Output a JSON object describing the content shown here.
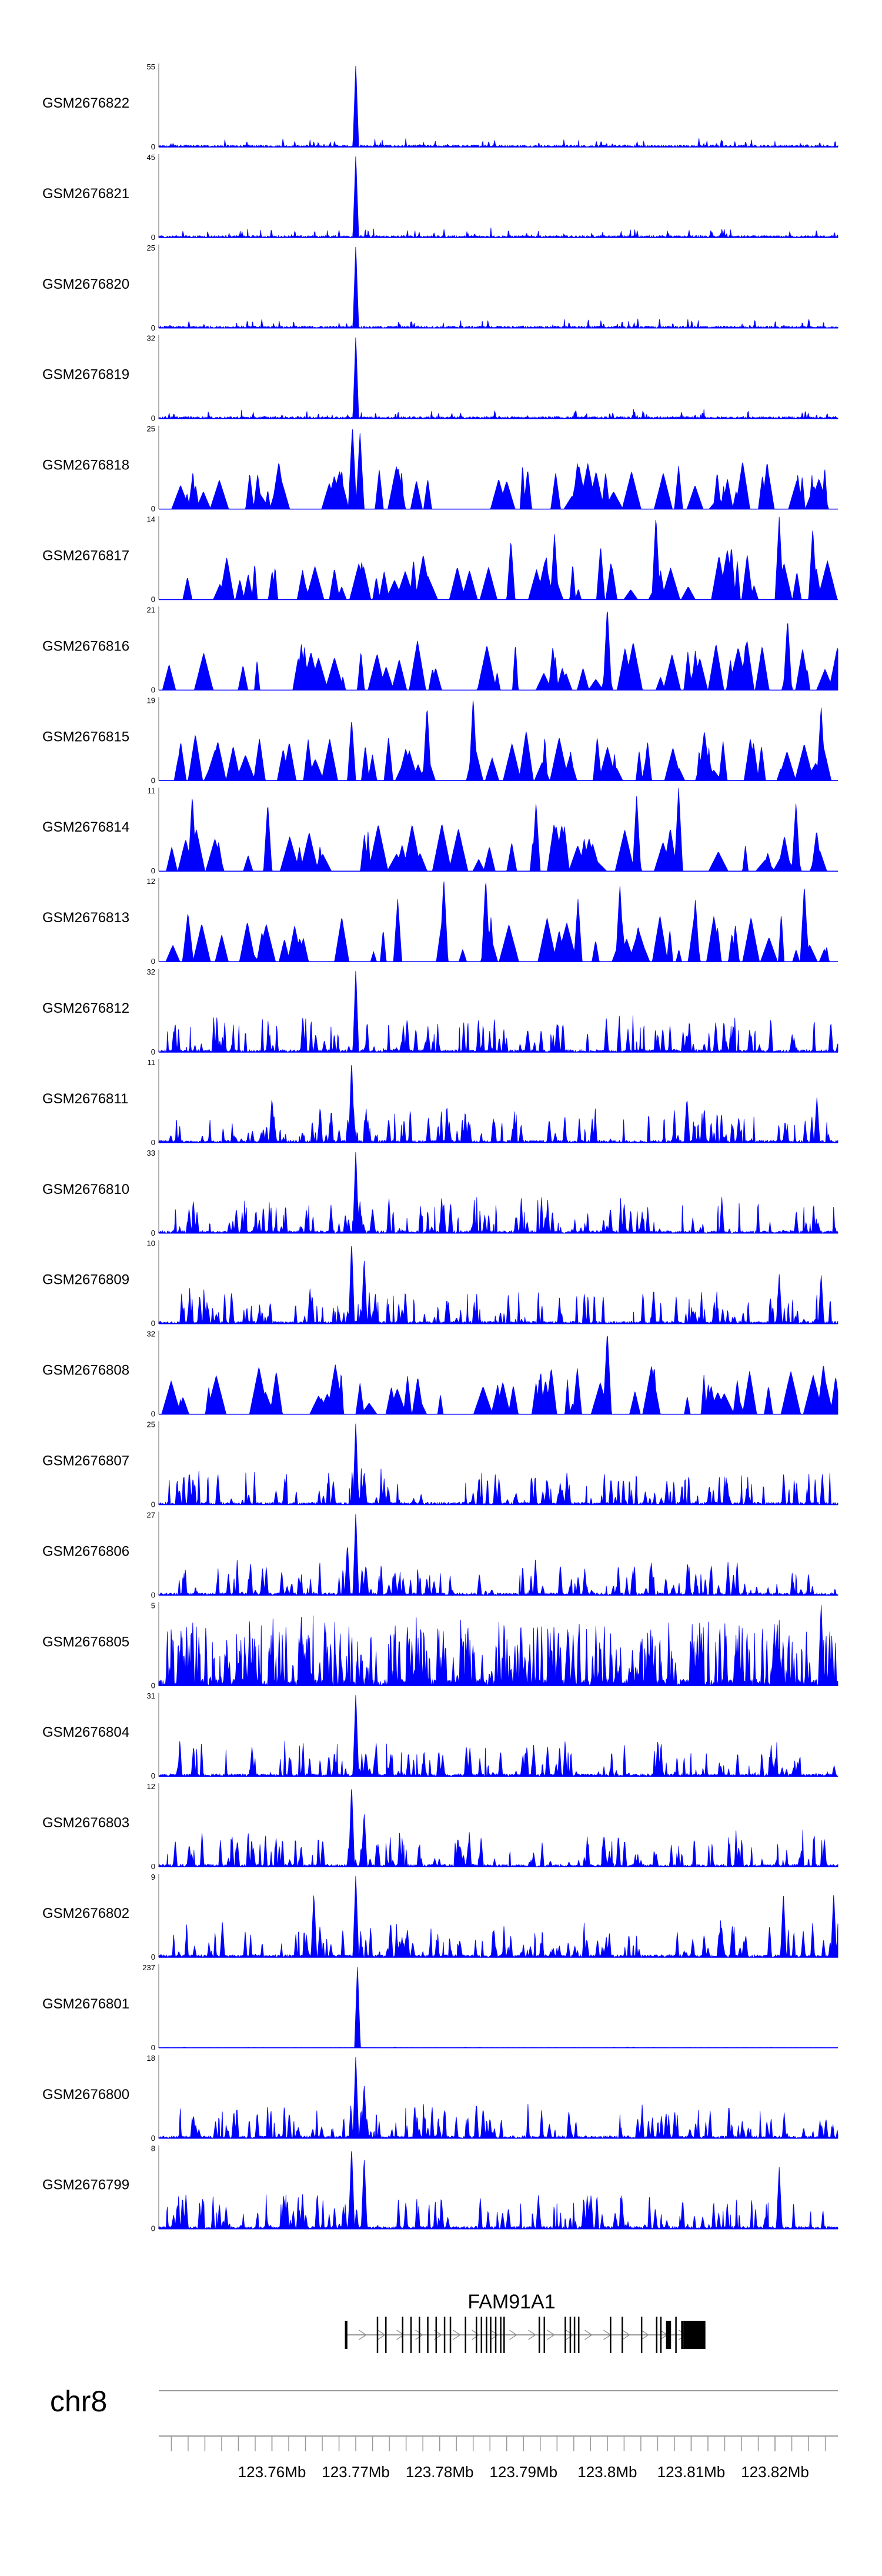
{
  "chart_data": {
    "type": "area",
    "title": "",
    "chromosome": "chr8",
    "xlim": [
      123.7465,
      123.8275
    ],
    "signal_color": "#0000ff",
    "tracks": [
      {
        "name": "GSM2676822",
        "ymax": "55",
        "ymin": "0",
        "style": "spiky",
        "peaks": [
          [
            123.77,
            55
          ]
        ]
      },
      {
        "name": "GSM2676821",
        "ymax": "45",
        "ymin": "0",
        "style": "spiky",
        "peaks": [
          [
            123.77,
            45
          ]
        ]
      },
      {
        "name": "GSM2676820",
        "ymax": "25",
        "ymin": "0",
        "style": "spiky",
        "peaks": [
          [
            123.77,
            25
          ]
        ]
      },
      {
        "name": "GSM2676819",
        "ymax": "32",
        "ymin": "0",
        "style": "spiky",
        "peaks": [
          [
            123.77,
            32
          ]
        ]
      },
      {
        "name": "GSM2676818",
        "ymax": "25",
        "ymin": "0",
        "style": "sparse",
        "peaks": [
          [
            123.7696,
            25
          ],
          [
            123.7705,
            23
          ],
          [
            123.7728,
            12
          ],
          [
            123.7905,
            12
          ],
          [
            123.7998,
            11
          ],
          [
            123.8085,
            13
          ],
          [
            123.8185,
            10
          ]
        ]
      },
      {
        "name": "GSM2676817",
        "ymax": "14",
        "ymin": "0",
        "style": "sparse",
        "peaks": [
          [
            123.7885,
            10
          ],
          [
            123.7937,
            11
          ],
          [
            123.7992,
            9
          ],
          [
            123.8058,
            14
          ],
          [
            123.8148,
            9
          ],
          [
            123.8205,
            14
          ],
          [
            123.8245,
            12
          ]
        ]
      },
      {
        "name": "GSM2676816",
        "ymax": "21",
        "ymin": "0",
        "style": "sparse",
        "peaks": [
          [
            123.7935,
            11
          ],
          [
            123.8,
            21
          ],
          [
            123.8105,
            10
          ],
          [
            123.8165,
            12
          ],
          [
            123.8215,
            18
          ]
        ]
      },
      {
        "name": "GSM2676815",
        "ymax": "19",
        "ymin": "0",
        "style": "sparse",
        "peaks": [
          [
            123.7695,
            14
          ],
          [
            123.7785,
            17
          ],
          [
            123.784,
            19
          ],
          [
            123.7988,
            10
          ],
          [
            123.8048,
            9
          ],
          [
            123.8138,
            9
          ],
          [
            123.8255,
            17
          ]
        ]
      },
      {
        "name": "GSM2676814",
        "ymax": "11",
        "ymin": "0",
        "style": "sparse",
        "peaks": [
          [
            123.7505,
            10
          ],
          [
            123.7595,
            9
          ],
          [
            123.7915,
            9
          ],
          [
            123.8035,
            10
          ],
          [
            123.8085,
            11
          ],
          [
            123.8225,
            9
          ]
        ]
      },
      {
        "name": "GSM2676813",
        "ymax": "12",
        "ymin": "0",
        "style": "sparse",
        "peaks": [
          [
            123.775,
            9
          ],
          [
            123.7805,
            12
          ],
          [
            123.7855,
            12
          ],
          [
            123.7965,
            9
          ],
          [
            123.8015,
            11
          ],
          [
            123.8105,
            9
          ],
          [
            123.8235,
            11
          ]
        ]
      },
      {
        "name": "GSM2676812",
        "ymax": "32",
        "ymin": "0",
        "style": "dense",
        "peaks": [
          [
            123.77,
            32
          ],
          [
            123.7905,
            9
          ],
          [
            123.8095,
            7
          ]
        ]
      },
      {
        "name": "GSM2676811",
        "ymax": "11",
        "ymin": "0",
        "style": "dense",
        "peaks": [
          [
            123.7695,
            11
          ],
          [
            123.76,
            6
          ],
          [
            123.8095,
            6
          ],
          [
            123.825,
            6
          ]
        ]
      },
      {
        "name": "GSM2676810",
        "ymax": "33",
        "ymin": "0",
        "style": "dense",
        "peaks": [
          [
            123.77,
            33
          ],
          [
            123.772,
            10
          ]
        ]
      },
      {
        "name": "GSM2676809",
        "ymax": "10",
        "ymin": "0",
        "style": "dense",
        "peaks": [
          [
            123.7695,
            10
          ],
          [
            123.771,
            8
          ],
          [
            123.8205,
            6
          ],
          [
            123.8255,
            6
          ]
        ]
      },
      {
        "name": "GSM2676808",
        "ymax": "32",
        "ymin": "0",
        "style": "sparse",
        "peaks": [
          [
            123.7705,
            12
          ],
          [
            123.8,
            32
          ],
          [
            123.7915,
            12
          ],
          [
            123.8155,
            13
          ],
          [
            123.8245,
            10
          ]
        ]
      },
      {
        "name": "GSM2676807",
        "ymax": "25",
        "ymin": "0",
        "style": "dense",
        "peaks": [
          [
            123.77,
            25
          ],
          [
            123.771,
            10
          ]
        ]
      },
      {
        "name": "GSM2676806",
        "ymax": "27",
        "ymin": "0",
        "style": "dense",
        "peaks": [
          [
            123.77,
            27
          ],
          [
            123.769,
            17
          ],
          [
            123.7712,
            10
          ]
        ]
      },
      {
        "name": "GSM2676805",
        "ymax": "5",
        "ymin": "0",
        "style": "verydense",
        "peaks": [
          [
            123.8255,
            5
          ],
          [
            123.7635,
            4
          ]
        ]
      },
      {
        "name": "GSM2676804",
        "ymax": "31",
        "ymin": "0",
        "style": "dense",
        "peaks": [
          [
            123.77,
            31
          ],
          [
            123.7712,
            9
          ]
        ]
      },
      {
        "name": "GSM2676803",
        "ymax": "12",
        "ymin": "0",
        "style": "dense",
        "peaks": [
          [
            123.7695,
            12
          ],
          [
            123.771,
            8
          ]
        ]
      },
      {
        "name": "GSM2676802",
        "ymax": "9",
        "ymin": "0",
        "style": "dense",
        "peaks": [
          [
            123.77,
            9
          ],
          [
            123.765,
            7
          ],
          [
            123.821,
            7
          ],
          [
            123.827,
            7
          ]
        ]
      },
      {
        "name": "GSM2676801",
        "ymax": "237",
        "ymin": "0",
        "style": "flat",
        "peaks": [
          [
            123.7702,
            237
          ]
        ]
      },
      {
        "name": "GSM2676800",
        "ymax": "18",
        "ymin": "0",
        "style": "dense",
        "peaks": [
          [
            123.77,
            18
          ],
          [
            123.771,
            12
          ]
        ]
      },
      {
        "name": "GSM2676799",
        "ymax": "8",
        "ymin": "0",
        "style": "dense",
        "peaks": [
          [
            123.7695,
            8
          ],
          [
            123.771,
            7
          ],
          [
            123.8205,
            6
          ]
        ]
      }
    ],
    "gene": {
      "name": "FAM91A1",
      "strand": "+",
      "start": 123.7687,
      "end": 123.8117,
      "exons": [
        [
          123.7687,
          123.769
        ],
        [
          123.7725,
          123.7726
        ],
        [
          123.7735,
          123.7736
        ],
        [
          123.7755,
          123.7756
        ],
        [
          123.7765,
          123.7766
        ],
        [
          123.7775,
          123.7776
        ],
        [
          123.7785,
          123.7786
        ],
        [
          123.7795,
          123.7796
        ],
        [
          123.7805,
          123.7806
        ],
        [
          123.7812,
          123.7813
        ],
        [
          123.783,
          123.7831
        ],
        [
          123.7843,
          123.7844
        ],
        [
          123.7849,
          123.785
        ],
        [
          123.7855,
          123.7856
        ],
        [
          123.786,
          123.7861
        ],
        [
          123.7866,
          123.7867
        ],
        [
          123.7872,
          123.7873
        ],
        [
          123.7876,
          123.7877
        ],
        [
          123.7918,
          123.7919
        ],
        [
          123.7924,
          123.7925
        ],
        [
          123.7949,
          123.795
        ],
        [
          123.7955,
          123.7956
        ],
        [
          123.796,
          123.7961
        ],
        [
          123.7965,
          123.7966
        ],
        [
          123.8003,
          123.8004
        ],
        [
          123.8017,
          123.8018
        ],
        [
          123.804,
          123.8041
        ],
        [
          123.8058,
          123.8059
        ],
        [
          123.8063,
          123.8064
        ],
        [
          123.807,
          123.8076
        ],
        [
          123.8081,
          123.8082
        ],
        [
          123.8088,
          123.8091
        ],
        [
          123.8091,
          123.8117
        ]
      ]
    },
    "axis": {
      "ticks": [
        123.76,
        123.77,
        123.78,
        123.79,
        123.8,
        123.81,
        123.82
      ],
      "tick_labels": [
        "123.76Mb",
        "123.77Mb",
        "123.78Mb",
        "123.79Mb",
        "123.8Mb",
        "123.81Mb",
        "123.82Mb"
      ],
      "minor_step": 0.002
    }
  }
}
